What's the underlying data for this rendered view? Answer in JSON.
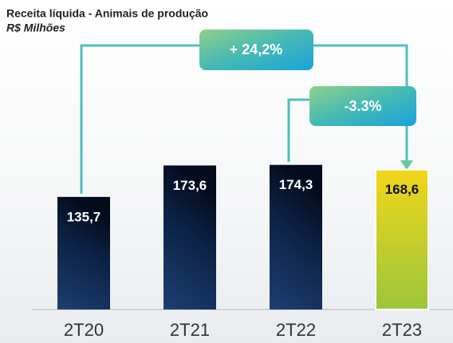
{
  "chart_data": {
    "type": "bar",
    "title": "Receita líquida - Animais de produção",
    "subtitle": "R$ Milhões",
    "categories": [
      "2T20",
      "2T21",
      "2T22",
      "2T23"
    ],
    "values": [
      135.7,
      173.6,
      174.3,
      168.6
    ],
    "value_labels": [
      "135,7",
      "173,6",
      "174,3",
      "168,6"
    ],
    "annotations": [
      "+ 24,2%",
      "-3.3%"
    ]
  }
}
